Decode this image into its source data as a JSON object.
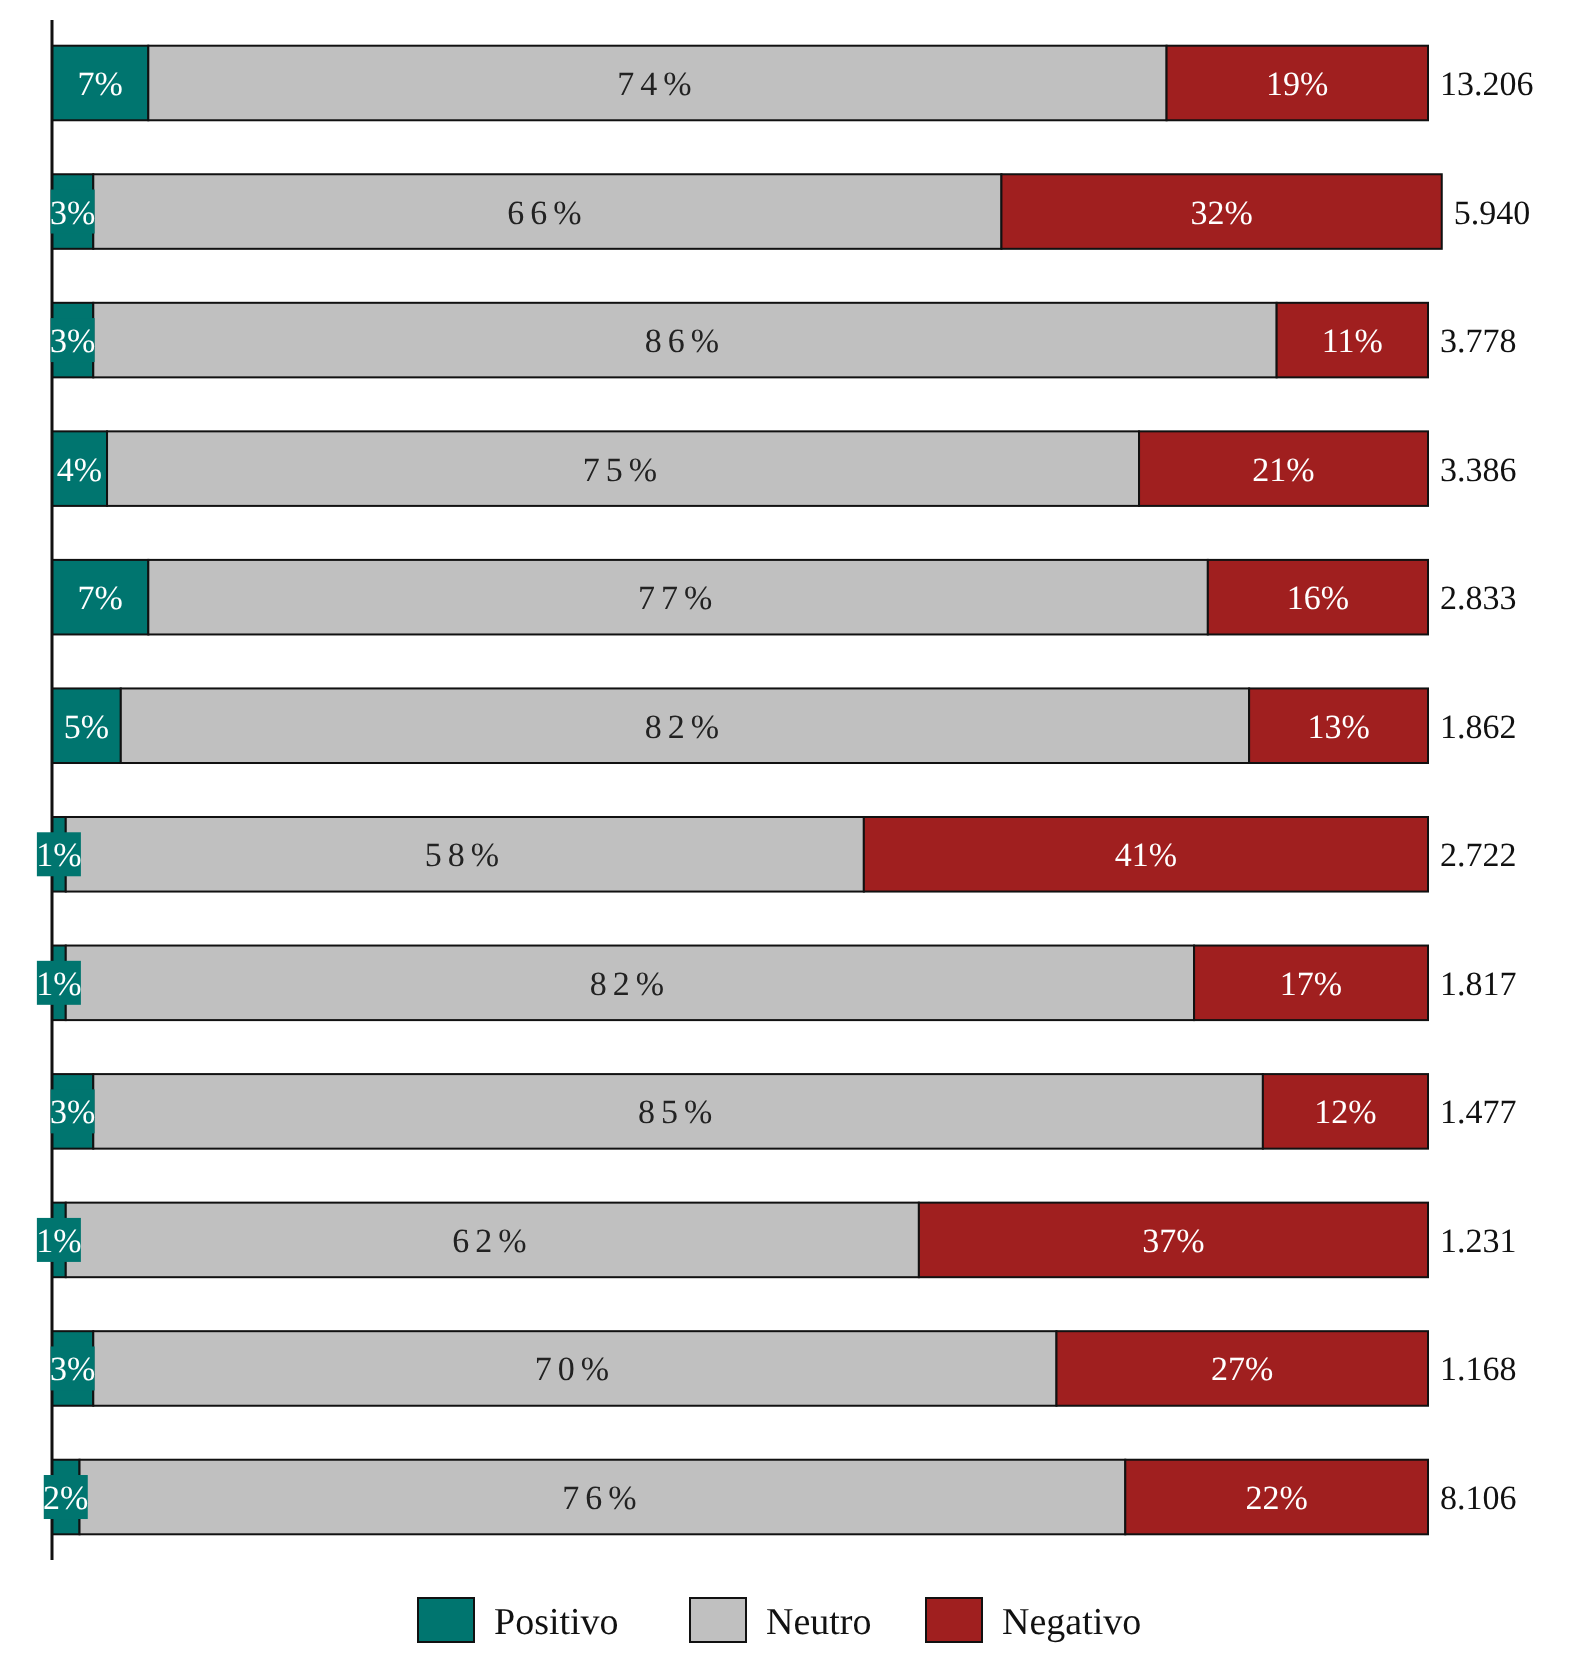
{
  "chart_data": {
    "type": "bar",
    "orientation": "horizontal",
    "stacked": true,
    "categories": [
      null,
      null,
      null,
      null,
      null,
      null,
      null,
      null,
      null,
      null,
      null,
      null
    ],
    "legend": "bottom",
    "series": [
      {
        "name": "Positivo",
        "color": "#00756f",
        "values": [
          7,
          3,
          3,
          4,
          7,
          5,
          1,
          1,
          3,
          1,
          3,
          2
        ],
        "value_labels": [
          "7%",
          "3%",
          "3%",
          "4%",
          "7%",
          "5%",
          "1%",
          "1%",
          "3%",
          "1%",
          "3%",
          "2%"
        ]
      },
      {
        "name": "Neutro",
        "color": "#c0c0c0",
        "values": [
          74,
          66,
          86,
          75,
          77,
          82,
          58,
          82,
          85,
          62,
          70,
          76
        ],
        "value_labels": [
          "74%",
          "66%",
          "86%",
          "75%",
          "77%",
          "82%",
          "58%",
          "82%",
          "85%",
          "62%",
          "70%",
          "76%"
        ]
      },
      {
        "name": "Negativo",
        "color": "#a01f1f",
        "values": [
          19,
          32,
          11,
          21,
          16,
          13,
          41,
          17,
          12,
          37,
          27,
          22
        ],
        "value_labels": [
          "19%",
          "32%",
          "11%",
          "21%",
          "16%",
          "13%",
          "41%",
          "17%",
          "12%",
          "37%",
          "27%",
          "22%"
        ]
      }
    ],
    "annotations": [
      "13.206",
      "5.940",
      "3.778",
      "3.386",
      "2.833",
      "1.862",
      "2.722",
      "1.817",
      "1.477",
      "1.231",
      "1.168",
      "8.106"
    ]
  }
}
